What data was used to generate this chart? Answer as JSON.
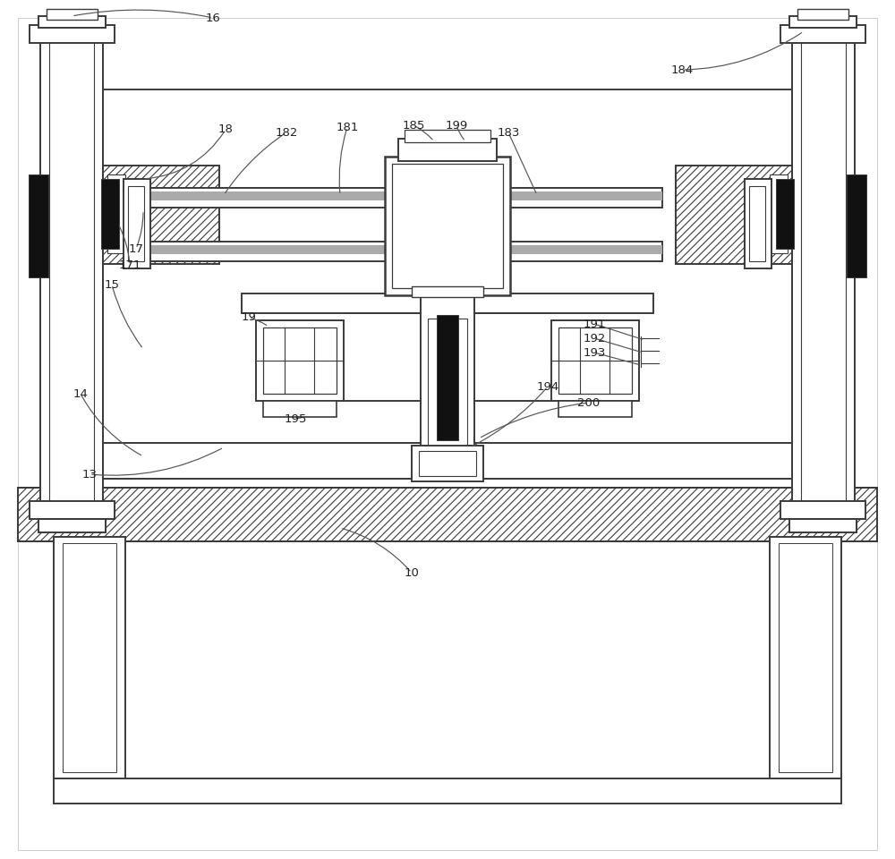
{
  "bg": "#ffffff",
  "lc": "#3a3a3a",
  "dc": "#111111",
  "gc": "#aaaaaa",
  "hatch_lc": "#555555"
}
